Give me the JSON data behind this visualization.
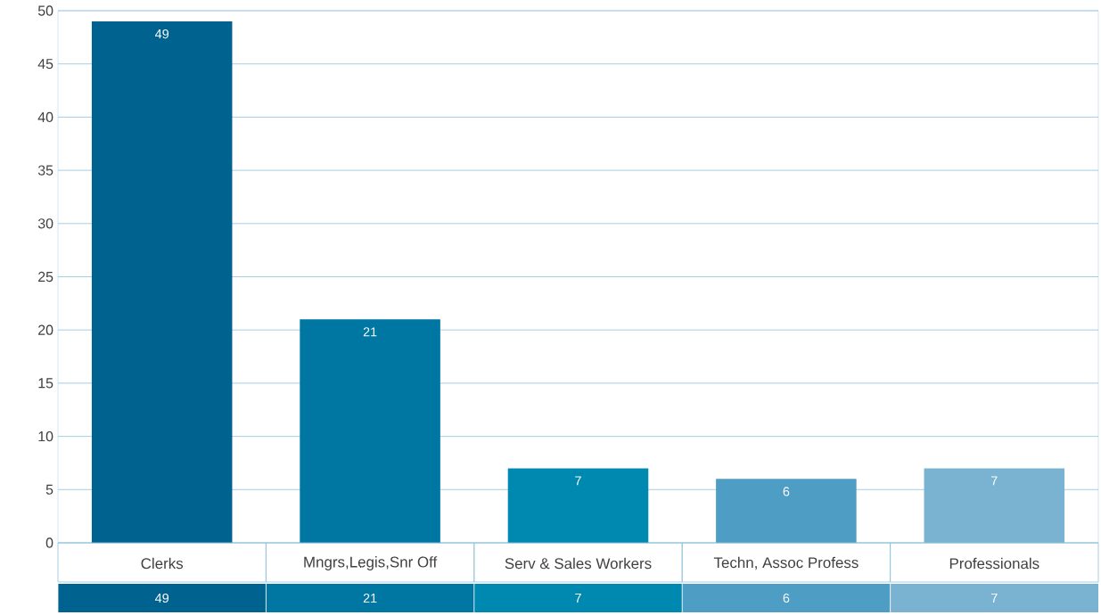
{
  "chart_data": {
    "type": "bar",
    "categories": [
      "Clerks",
      "Mngrs,Legis,Snr Off",
      "Serv & Sales Workers",
      "Techn, Assoc Profess",
      "Professionals"
    ],
    "values": [
      49,
      21,
      7,
      6,
      7
    ],
    "value_labels": [
      "49",
      "21",
      "7",
      "6",
      "7"
    ],
    "colors": [
      "#00628f",
      "#0077a3",
      "#0089b0",
      "#4d9dc4",
      "#7ab3d1"
    ],
    "ylim": [
      0,
      50
    ],
    "yticks": [
      0,
      5,
      10,
      15,
      20,
      25,
      30,
      35,
      40,
      45,
      50
    ],
    "grid": true,
    "annotations": [
      "49",
      "21",
      "7",
      "6",
      "7"
    ]
  }
}
